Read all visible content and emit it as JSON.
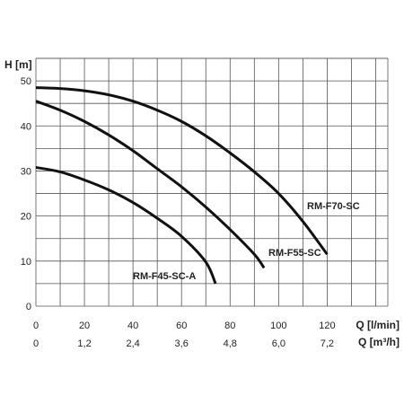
{
  "chart_data": {
    "type": "line",
    "ylabel": "H [m]",
    "xlabel": "Q [l/min]",
    "xlabel2": "Q [m³/h]",
    "xlim": [
      0,
      145
    ],
    "ylim": [
      0,
      55
    ],
    "x_ticks": [
      "0",
      "20",
      "40",
      "60",
      "80",
      "100",
      "120"
    ],
    "x_tick_values": [
      0,
      20,
      40,
      60,
      80,
      100,
      120
    ],
    "x2_ticks": [
      "0",
      "1,2",
      "2,4",
      "3,6",
      "4,8",
      "6,0",
      "7,2"
    ],
    "y_ticks": [
      "0",
      "10",
      "20",
      "30",
      "40",
      "50"
    ],
    "y_tick_values": [
      0,
      10,
      20,
      30,
      40,
      50
    ],
    "grid": true,
    "series": [
      {
        "name": "RM-F70-SC",
        "x": [
          0,
          10,
          20,
          30,
          40,
          50,
          60,
          70,
          80,
          90,
          100,
          110,
          120
        ],
        "y": [
          48.5,
          48.3,
          47.8,
          46.9,
          45.5,
          43.5,
          41,
          37.8,
          34,
          29.8,
          25,
          18.8,
          11.5
        ]
      },
      {
        "name": "RM-F55-SC",
        "x": [
          0,
          10,
          20,
          30,
          40,
          50,
          60,
          70,
          80,
          90,
          94
        ],
        "y": [
          45.5,
          43.5,
          41,
          38,
          34.5,
          30.5,
          26.5,
          22,
          17,
          11.5,
          8.5
        ]
      },
      {
        "name": "RM-F45-SC-A",
        "x": [
          0,
          10,
          20,
          30,
          40,
          50,
          60,
          70,
          74
        ],
        "y": [
          30.8,
          29.8,
          28,
          25.8,
          23,
          19.5,
          15.5,
          9.8,
          5
        ]
      }
    ]
  }
}
